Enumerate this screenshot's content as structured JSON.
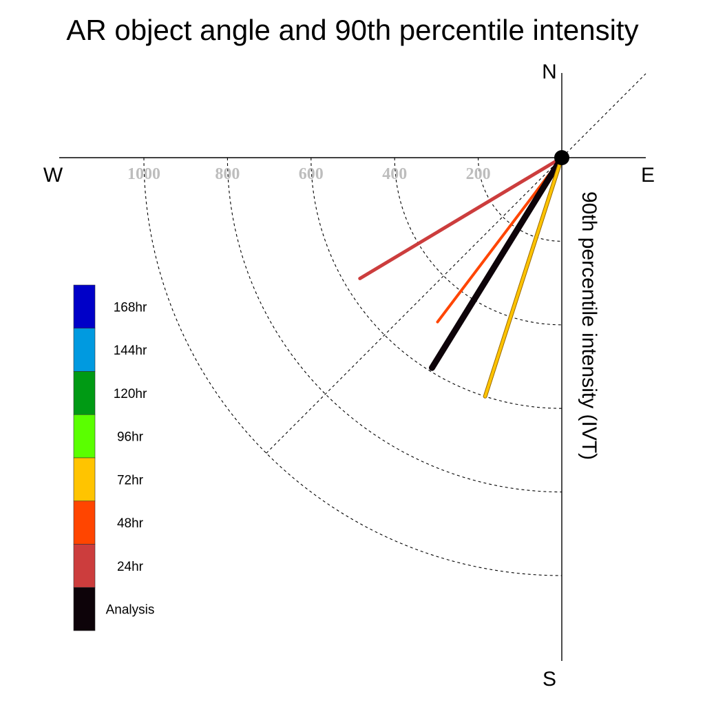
{
  "chart_data": {
    "type": "polar-vector",
    "title": "AR object angle and 90th percentile intensity",
    "radial_label": "90th percentile intensity (IVT)",
    "radial_ticks": [
      200,
      400,
      600,
      800,
      1000
    ],
    "radial_max": 1000,
    "compass": {
      "north": "N",
      "south": "S",
      "east": "E",
      "west": "W"
    },
    "series": [
      {
        "name": "24hr",
        "angle_deg_from_south_toward_west": 59.1,
        "intensity": 563,
        "color": "#cc3d3d",
        "width": 5
      },
      {
        "name": "48hr",
        "angle_deg_from_south_toward_west": 37.1,
        "intensity": 493,
        "color": "#ff4500",
        "width": 4
      },
      {
        "name": "Analysis",
        "angle_deg_from_south_toward_west": 31.7,
        "intensity": 591,
        "color": "#0d0309",
        "width": 9
      },
      {
        "name": "72hr",
        "angle_deg_from_south_toward_west": 17.8,
        "intensity": 600,
        "color": "#ffc400",
        "width": 4
      }
    ],
    "legend": [
      {
        "label": "168hr",
        "color": "#0000c8"
      },
      {
        "label": "144hr",
        "color": "#009ae0"
      },
      {
        "label": "120hr",
        "color": "#009a14"
      },
      {
        "label": "96hr",
        "color": "#5aff00"
      },
      {
        "label": "72hr",
        "color": "#ffc400"
      },
      {
        "label": "48hr",
        "color": "#ff4500"
      },
      {
        "label": "24hr",
        "color": "#cc3d3d"
      },
      {
        "label": "Analysis",
        "color": "#0d0309"
      }
    ]
  }
}
